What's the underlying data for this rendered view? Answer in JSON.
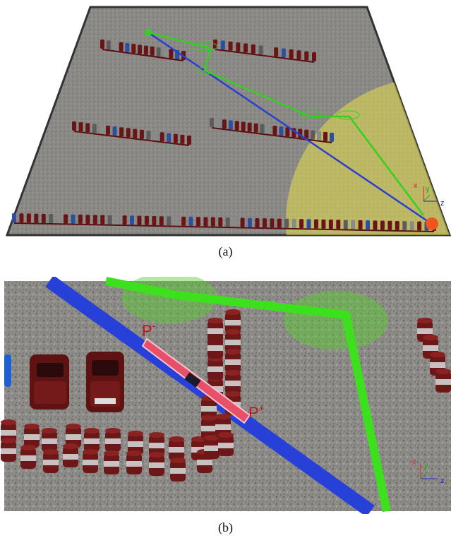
{
  "panel_a": {
    "caption": "(a)",
    "axes": {
      "x": "x",
      "y": "y",
      "z": "z"
    },
    "colors": {
      "route": "#2a3fcf",
      "path": "#33d11f",
      "zone": "#e3de4a",
      "goal": "#f0561c",
      "car": "#6a1515"
    }
  },
  "panel_b": {
    "caption": "(b)",
    "label_minus": "P",
    "label_minus_sup": "-",
    "label_plus": "P",
    "label_plus_sup": "+",
    "axes": {
      "x": "x",
      "y": "y",
      "z": "z"
    },
    "colors": {
      "route": "#2740d8",
      "path": "#3de01c",
      "segment": "#e8506a",
      "cone_red": "#6d1818",
      "cone_white": "#c9c1c1"
    }
  }
}
